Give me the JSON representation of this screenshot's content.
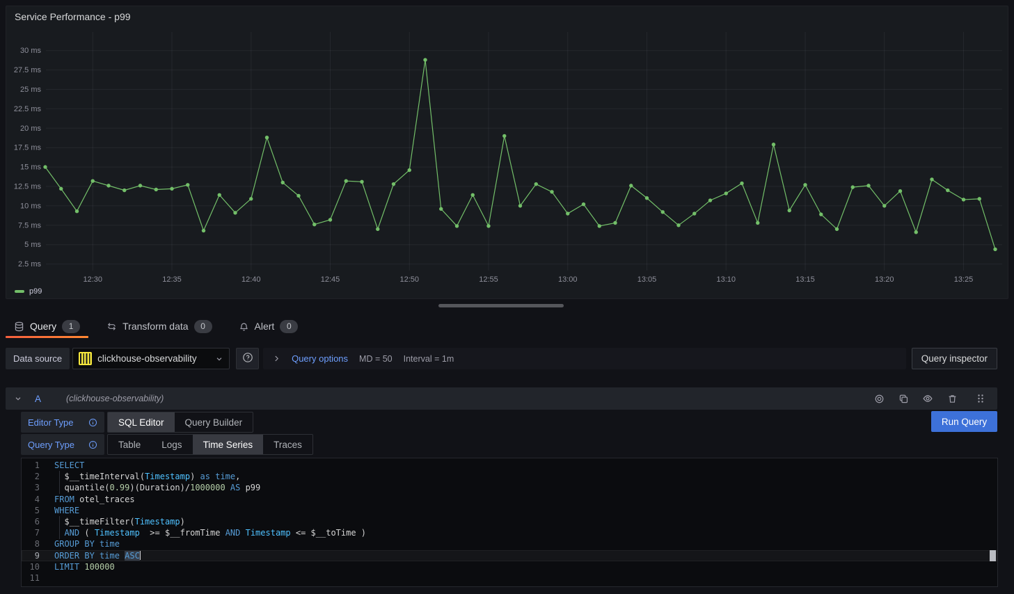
{
  "colors": {
    "series_green": "#73BF69",
    "accent_blue": "#3D71D9",
    "link_blue": "#6E9FFF",
    "tab_underline_from": "#F55F3E",
    "tab_underline_to": "#FF8833",
    "syntax_keyword": "#569CD6",
    "syntax_column": "#4FC1FF",
    "syntax_number": "#B5CEA8",
    "clickhouse_yellow": "#F5E73D"
  },
  "panel": {
    "title": "Service Performance - p99",
    "legend": "p99"
  },
  "chart_data": {
    "type": "line",
    "title": "Service Performance - p99",
    "y_unit": "ms",
    "ylim": [
      1.5,
      32.5
    ],
    "grid": true,
    "legend_position": "bottom-left",
    "y_ticks": [
      2.5,
      5,
      7.5,
      10,
      12.5,
      15,
      17.5,
      20,
      22.5,
      25,
      27.5,
      30
    ],
    "x_ticks": [
      "12:30",
      "12:35",
      "12:40",
      "12:45",
      "12:50",
      "12:55",
      "13:00",
      "13:05",
      "13:10",
      "13:15",
      "13:20",
      "13:25"
    ],
    "series": [
      {
        "name": "p99",
        "color": "#73BF69",
        "x": [
          "12:27",
          "12:28",
          "12:29",
          "12:30",
          "12:31",
          "12:32",
          "12:33",
          "12:34",
          "12:35",
          "12:36",
          "12:37",
          "12:38",
          "12:39",
          "12:40",
          "12:41",
          "12:42",
          "12:43",
          "12:44",
          "12:45",
          "12:46",
          "12:47",
          "12:48",
          "12:49",
          "12:50",
          "12:51",
          "12:52",
          "12:53",
          "12:54",
          "12:55",
          "12:56",
          "12:57",
          "12:58",
          "12:59",
          "13:00",
          "13:01",
          "13:02",
          "13:03",
          "13:04",
          "13:05",
          "13:06",
          "13:07",
          "13:08",
          "13:09",
          "13:10",
          "13:11",
          "13:12",
          "13:13",
          "13:14",
          "13:15",
          "13:16",
          "13:17",
          "13:18",
          "13:19",
          "13:20",
          "13:21",
          "13:22",
          "13:23",
          "13:24",
          "13:25",
          "13:26",
          "13:27"
        ],
        "values": [
          15.0,
          12.2,
          9.3,
          13.2,
          12.6,
          12.0,
          12.6,
          12.1,
          12.2,
          12.7,
          6.8,
          11.4,
          9.1,
          10.9,
          18.8,
          13.0,
          11.3,
          7.6,
          8.2,
          13.2,
          13.1,
          7.0,
          12.8,
          14.6,
          28.8,
          9.6,
          7.4,
          11.4,
          7.4,
          19.0,
          10.0,
          12.8,
          11.8,
          9.0,
          10.2,
          7.4,
          7.8,
          12.6,
          11.0,
          9.2,
          7.5,
          9.0,
          10.7,
          11.6,
          12.9,
          7.8,
          17.9,
          9.4,
          12.7,
          8.9,
          7.0,
          12.4,
          12.6,
          10.0,
          11.9,
          6.6,
          13.4,
          12.0,
          10.8,
          10.9,
          4.4
        ]
      }
    ]
  },
  "tabs": [
    {
      "label": "Query",
      "count": "1",
      "active": true
    },
    {
      "label": "Transform data",
      "count": "0",
      "active": false
    },
    {
      "label": "Alert",
      "count": "0",
      "active": false
    }
  ],
  "datasource": {
    "label": "Data source",
    "value": "clickhouse-observability",
    "options_link": "Query options",
    "max_data_points": "MD = 50",
    "interval": "Interval = 1m",
    "inspector_label": "Query inspector"
  },
  "query": {
    "ref": "A",
    "datasource_hint": "(clickhouse-observability)",
    "editor_type_label": "Editor Type",
    "editor_types": [
      "SQL Editor",
      "Query Builder"
    ],
    "active_editor_type": "SQL Editor",
    "query_type_label": "Query Type",
    "query_types": [
      "Table",
      "Logs",
      "Time Series",
      "Traces"
    ],
    "active_query_type": "Time Series",
    "run_button": "Run Query"
  },
  "sql": {
    "lines": [
      {
        "n": 1,
        "tokens": [
          [
            "kw",
            "SELECT"
          ]
        ]
      },
      {
        "n": 2,
        "tokens": [
          [
            "id",
            "  $__timeInterval("
          ],
          [
            "type",
            "Timestamp"
          ],
          [
            "id",
            ") "
          ],
          [
            "kw",
            "as"
          ],
          [
            "id",
            " "
          ],
          [
            "kw",
            "time"
          ],
          [
            "id",
            ","
          ]
        ]
      },
      {
        "n": 3,
        "tokens": [
          [
            "id",
            "  quantile("
          ],
          [
            "num",
            "0.99"
          ],
          [
            "id",
            ")(Duration)/"
          ],
          [
            "num",
            "1000000"
          ],
          [
            "id",
            " "
          ],
          [
            "kw",
            "AS"
          ],
          [
            "id",
            " p99"
          ]
        ]
      },
      {
        "n": 4,
        "tokens": [
          [
            "kw",
            "FROM"
          ],
          [
            "id",
            " otel_traces"
          ]
        ]
      },
      {
        "n": 5,
        "tokens": [
          [
            "kw",
            "WHERE"
          ]
        ]
      },
      {
        "n": 6,
        "tokens": [
          [
            "id",
            "  $__timeFilter("
          ],
          [
            "type",
            "Timestamp"
          ],
          [
            "id",
            ")"
          ]
        ]
      },
      {
        "n": 7,
        "tokens": [
          [
            "id",
            "  "
          ],
          [
            "kw",
            "AND"
          ],
          [
            "id",
            " ( "
          ],
          [
            "type",
            "Timestamp"
          ],
          [
            "id",
            "  >= $__fromTime "
          ],
          [
            "kw",
            "AND"
          ],
          [
            "id",
            " "
          ],
          [
            "type",
            "Timestamp"
          ],
          [
            "id",
            " <= $__toTime )"
          ]
        ]
      },
      {
        "n": 8,
        "tokens": [
          [
            "kw",
            "GROUP BY"
          ],
          [
            "id",
            " "
          ],
          [
            "kw",
            "time"
          ]
        ]
      },
      {
        "n": 9,
        "current": true,
        "tokens": [
          [
            "kw",
            "ORDER BY"
          ],
          [
            "id",
            " "
          ],
          [
            "kw",
            "time"
          ],
          [
            "id",
            " "
          ],
          [
            "kw sel",
            "ASC"
          ]
        ]
      },
      {
        "n": 10,
        "tokens": [
          [
            "kw",
            "LIMIT"
          ],
          [
            "id",
            " "
          ],
          [
            "num",
            "100000"
          ]
        ]
      },
      {
        "n": 11,
        "tokens": []
      }
    ]
  }
}
